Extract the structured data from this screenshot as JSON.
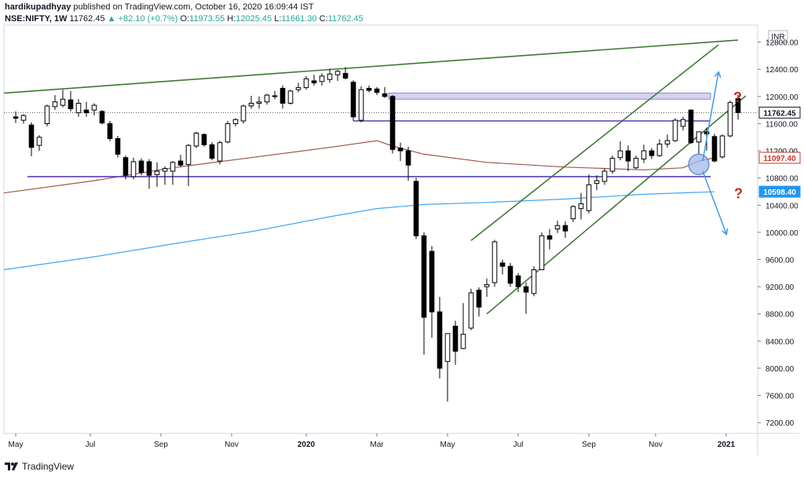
{
  "header": {
    "author": "hardikupadhyay",
    "published_text": "published on TradingView.com, October 16, 2020 16:09:44 IST"
  },
  "ohlc": {
    "symbol": "NSE:NIFTY, 1W",
    "last": "11762.45",
    "change_arrow": "▲",
    "change": "+82.10 (+0.7%)",
    "o_label": "O:",
    "o": "11973.55",
    "h_label": "H:",
    "h": "12025.45",
    "l_label": "L:",
    "l": "11661.30",
    "c_label": "C:",
    "c": "11762.45"
  },
  "footer": {
    "brand": "TradingView",
    "logo_icon": "tradingview-logo-icon"
  },
  "chart_data": {
    "type": "candlestick",
    "currency_label": "INR",
    "y_ticks": [
      "7200.00",
      "7600.00",
      "8000.00",
      "8400.00",
      "8800.00",
      "9200.00",
      "9600.00",
      "10000.00",
      "10400.00",
      "10800.00",
      "11200.00",
      "11600.00",
      "12000.00",
      "12400.00",
      "12800.00"
    ],
    "ylim": [
      7040,
      13050
    ],
    "x_ticks": [
      {
        "label": "May",
        "index": 0
      },
      {
        "label": "Jul",
        "index": 9.5
      },
      {
        "label": "Sep",
        "index": 18.5
      },
      {
        "label": "Nov",
        "index": 27.5
      },
      {
        "label": "2020",
        "index": 37
      },
      {
        "label": "Mar",
        "index": 46
      },
      {
        "label": "May",
        "index": 55
      },
      {
        "label": "Jul",
        "index": 64
      },
      {
        "label": "Sep",
        "index": 73
      },
      {
        "label": "Nov",
        "index": 81.5
      },
      {
        "label": "2021",
        "index": 90.5
      }
    ],
    "x_range": [
      -1.5,
      94.5
    ],
    "candles": [
      {
        "o": 11700,
        "h": 11780,
        "l": 11610,
        "c": 11680
      },
      {
        "o": 11650,
        "h": 11740,
        "l": 11600,
        "c": 11720
      },
      {
        "o": 11580,
        "h": 11620,
        "l": 11120,
        "c": 11250
      },
      {
        "o": 11280,
        "h": 11430,
        "l": 11200,
        "c": 11400
      },
      {
        "o": 11600,
        "h": 11880,
        "l": 11560,
        "c": 11860
      },
      {
        "o": 11850,
        "h": 12020,
        "l": 11800,
        "c": 11920
      },
      {
        "o": 11870,
        "h": 12100,
        "l": 11840,
        "c": 11960
      },
      {
        "o": 11950,
        "h": 12080,
        "l": 11780,
        "c": 11820
      },
      {
        "o": 11760,
        "h": 11960,
        "l": 11700,
        "c": 11900
      },
      {
        "o": 11800,
        "h": 11920,
        "l": 11700,
        "c": 11760
      },
      {
        "o": 11800,
        "h": 11900,
        "l": 11720,
        "c": 11870
      },
      {
        "o": 11780,
        "h": 11800,
        "l": 11590,
        "c": 11610
      },
      {
        "o": 11600,
        "h": 11640,
        "l": 11340,
        "c": 11380
      },
      {
        "o": 11380,
        "h": 11420,
        "l": 11100,
        "c": 11150
      },
      {
        "o": 11100,
        "h": 11130,
        "l": 10780,
        "c": 10840
      },
      {
        "o": 10820,
        "h": 11100,
        "l": 10780,
        "c": 11040
      },
      {
        "o": 11050,
        "h": 11090,
        "l": 10840,
        "c": 10880
      },
      {
        "o": 11040,
        "h": 11080,
        "l": 10640,
        "c": 10840
      },
      {
        "o": 10850,
        "h": 11030,
        "l": 10670,
        "c": 10900
      },
      {
        "o": 10900,
        "h": 10970,
        "l": 10700,
        "c": 10940
      },
      {
        "o": 10900,
        "h": 11050,
        "l": 10700,
        "c": 11030
      },
      {
        "o": 11050,
        "h": 11140,
        "l": 10960,
        "c": 10990
      },
      {
        "o": 11000,
        "h": 11300,
        "l": 10680,
        "c": 11280
      },
      {
        "o": 11270,
        "h": 11480,
        "l": 11240,
        "c": 11460
      },
      {
        "o": 11440,
        "h": 11460,
        "l": 11260,
        "c": 11290
      },
      {
        "o": 11290,
        "h": 11330,
        "l": 11060,
        "c": 11090
      },
      {
        "o": 11050,
        "h": 11350,
        "l": 11000,
        "c": 11320
      },
      {
        "o": 11330,
        "h": 11640,
        "l": 11310,
        "c": 11600
      },
      {
        "o": 11600,
        "h": 11680,
        "l": 11560,
        "c": 11660
      },
      {
        "o": 11640,
        "h": 11880,
        "l": 11600,
        "c": 11860
      },
      {
        "o": 11860,
        "h": 12010,
        "l": 11820,
        "c": 11900
      },
      {
        "o": 11900,
        "h": 12000,
        "l": 11820,
        "c": 11920
      },
      {
        "o": 11920,
        "h": 12040,
        "l": 11880,
        "c": 12020
      },
      {
        "o": 12010,
        "h": 12080,
        "l": 11960,
        "c": 12000
      },
      {
        "o": 12120,
        "h": 12160,
        "l": 11820,
        "c": 11900
      },
      {
        "o": 11900,
        "h": 12100,
        "l": 11880,
        "c": 12080
      },
      {
        "o": 12100,
        "h": 12200,
        "l": 12060,
        "c": 12130
      },
      {
        "o": 12130,
        "h": 12300,
        "l": 12100,
        "c": 12260
      },
      {
        "o": 12230,
        "h": 12320,
        "l": 12160,
        "c": 12200
      },
      {
        "o": 12220,
        "h": 12340,
        "l": 12160,
        "c": 12300
      },
      {
        "o": 12250,
        "h": 12410,
        "l": 12200,
        "c": 12330
      },
      {
        "o": 12320,
        "h": 12390,
        "l": 12230,
        "c": 12370
      },
      {
        "o": 12340,
        "h": 12430,
        "l": 12250,
        "c": 12270
      },
      {
        "o": 12210,
        "h": 12240,
        "l": 11640,
        "c": 11700
      },
      {
        "o": 11650,
        "h": 12150,
        "l": 11620,
        "c": 12100
      },
      {
        "o": 12120,
        "h": 12160,
        "l": 12060,
        "c": 12090
      },
      {
        "o": 12110,
        "h": 12140,
        "l": 12020,
        "c": 12060
      },
      {
        "o": 12040,
        "h": 12140,
        "l": 11980,
        "c": 12000
      },
      {
        "o": 12000,
        "h": 12020,
        "l": 11160,
        "c": 11220
      },
      {
        "o": 11240,
        "h": 11320,
        "l": 11050,
        "c": 11200
      },
      {
        "o": 11200,
        "h": 11260,
        "l": 10760,
        "c": 10990
      },
      {
        "o": 10750,
        "h": 10800,
        "l": 9900,
        "c": 9950
      },
      {
        "o": 9950,
        "h": 10000,
        "l": 8200,
        "c": 8750
      },
      {
        "o": 9720,
        "h": 9800,
        "l": 8450,
        "c": 8830
      },
      {
        "o": 8830,
        "h": 9050,
        "l": 7850,
        "c": 8000
      },
      {
        "o": 8100,
        "h": 8450,
        "l": 7510,
        "c": 8510
      },
      {
        "o": 8620,
        "h": 8700,
        "l": 8050,
        "c": 8250
      },
      {
        "o": 8290,
        "h": 8960,
        "l": 8280,
        "c": 8500
      },
      {
        "o": 8590,
        "h": 9170,
        "l": 8560,
        "c": 9110
      },
      {
        "o": 9150,
        "h": 9190,
        "l": 8760,
        "c": 8900
      },
      {
        "o": 9200,
        "h": 9320,
        "l": 9050,
        "c": 9230
      },
      {
        "o": 9260,
        "h": 9890,
        "l": 9200,
        "c": 9860
      },
      {
        "o": 9550,
        "h": 9600,
        "l": 9380,
        "c": 9500
      },
      {
        "o": 9500,
        "h": 9550,
        "l": 9200,
        "c": 9250
      },
      {
        "o": 9360,
        "h": 9400,
        "l": 9120,
        "c": 9200
      },
      {
        "o": 9200,
        "h": 9260,
        "l": 8800,
        "c": 9120
      },
      {
        "o": 9100,
        "h": 9500,
        "l": 9060,
        "c": 9450
      },
      {
        "o": 9450,
        "h": 10000,
        "l": 9450,
        "c": 9950
      },
      {
        "o": 9950,
        "h": 10050,
        "l": 9750,
        "c": 9900
      },
      {
        "o": 10050,
        "h": 10170,
        "l": 9990,
        "c": 10100
      },
      {
        "o": 10100,
        "h": 10160,
        "l": 9920,
        "c": 10020
      },
      {
        "o": 10200,
        "h": 10400,
        "l": 10150,
        "c": 10380
      },
      {
        "o": 10350,
        "h": 10580,
        "l": 10190,
        "c": 10420
      },
      {
        "o": 10320,
        "h": 10850,
        "l": 10280,
        "c": 10700
      },
      {
        "o": 10720,
        "h": 10840,
        "l": 10620,
        "c": 10760
      },
      {
        "o": 10750,
        "h": 10940,
        "l": 10700,
        "c": 10900
      },
      {
        "o": 10900,
        "h": 11130,
        "l": 10860,
        "c": 11090
      },
      {
        "o": 11100,
        "h": 11340,
        "l": 11060,
        "c": 11200
      },
      {
        "o": 11200,
        "h": 11280,
        "l": 10900,
        "c": 11050
      },
      {
        "o": 10950,
        "h": 11130,
        "l": 10930,
        "c": 11090
      },
      {
        "o": 11080,
        "h": 11290,
        "l": 11020,
        "c": 11200
      },
      {
        "o": 11200,
        "h": 11240,
        "l": 11080,
        "c": 11130
      },
      {
        "o": 11130,
        "h": 11370,
        "l": 11110,
        "c": 11300
      },
      {
        "o": 11300,
        "h": 11440,
        "l": 11250,
        "c": 11350
      },
      {
        "o": 11350,
        "h": 11680,
        "l": 11330,
        "c": 11650
      },
      {
        "o": 11560,
        "h": 11700,
        "l": 11500,
        "c": 11660
      },
      {
        "o": 11800,
        "h": 11810,
        "l": 11300,
        "c": 11320
      },
      {
        "o": 11330,
        "h": 11480,
        "l": 11150,
        "c": 11480
      },
      {
        "o": 11480,
        "h": 11540,
        "l": 11200,
        "c": 11450
      },
      {
        "o": 11410,
        "h": 11450,
        "l": 11030,
        "c": 11050
      },
      {
        "o": 11110,
        "h": 11440,
        "l": 11090,
        "c": 11420
      },
      {
        "o": 11420,
        "h": 11940,
        "l": 11400,
        "c": 11910
      },
      {
        "o": 11970,
        "h": 12025,
        "l": 11660,
        "c": 11762
      }
    ],
    "ma_red": [
      [
        -1.5,
        10580
      ],
      [
        10,
        10760
      ],
      [
        20,
        10950
      ],
      [
        30,
        11100
      ],
      [
        40,
        11250
      ],
      [
        46,
        11350
      ],
      [
        48,
        11270
      ],
      [
        52,
        11150
      ],
      [
        60,
        11030
      ],
      [
        70,
        10960
      ],
      [
        80,
        10920
      ],
      [
        85,
        10950
      ],
      [
        87,
        11050
      ],
      [
        89,
        11097
      ]
    ],
    "ma_blue": [
      [
        -1.5,
        9450
      ],
      [
        10,
        9640
      ],
      [
        20,
        9830
      ],
      [
        30,
        10010
      ],
      [
        40,
        10230
      ],
      [
        46,
        10350
      ],
      [
        52,
        10410
      ],
      [
        60,
        10440
      ],
      [
        70,
        10490
      ],
      [
        80,
        10560
      ],
      [
        89,
        10598
      ]
    ],
    "lines": [
      {
        "name": "top-trendline",
        "color": "#3d7a32",
        "x1": -1.5,
        "y1": 12050,
        "x2": 92,
        "y2": 12830
      },
      {
        "name": "upper-channel",
        "color": "#3d7a32",
        "x1": 58,
        "y1": 9880,
        "x2": 89.5,
        "y2": 12760
      },
      {
        "name": "lower-channel",
        "color": "#3d7a32",
        "x1": 60,
        "y1": 8800,
        "x2": 93,
        "y2": 12010
      },
      {
        "name": "resistance-line",
        "color": "#5b3fb0",
        "x1": 43,
        "y1": 11640,
        "x2": 88.5,
        "y2": 11640
      },
      {
        "name": "support-line",
        "color": "#5b3fb0",
        "x1": 1.5,
        "y1": 10820,
        "x2": 88.5,
        "y2": 10820
      }
    ],
    "zone": {
      "x1": 47.5,
      "x2": 88.5,
      "y1": 11960,
      "y2": 12050,
      "color": "#b8b4e6"
    },
    "arrows": [
      {
        "name": "up-arrow",
        "x1": 87.5,
        "y1": 11050,
        "x2": 89.5,
        "y2": 12350
      },
      {
        "name": "down-arrow",
        "x1": 87.5,
        "y1": 10900,
        "x2": 90.5,
        "y2": 9980
      }
    ],
    "circle": {
      "x": 87,
      "y": 11000
    },
    "question_marks": [
      {
        "text": "?",
        "x": 91.4,
        "y": 11920
      },
      {
        "text": "?",
        "x": 91.5,
        "y": 10500
      }
    ],
    "price_labels": [
      {
        "text": "11762.45",
        "value": 11762.45,
        "bg": "#ffffff",
        "fg": "#131722",
        "border": "#131722"
      },
      {
        "text": "11097.40",
        "value": 11097.4,
        "bg": "#ffffff",
        "fg": "#c0392b",
        "border": "#c0392b"
      },
      {
        "text": "10598.40",
        "value": 10598.4,
        "bg": "#2196f3",
        "fg": "#ffffff",
        "border": "#2196f3"
      }
    ],
    "last_price": 11762.45
  }
}
